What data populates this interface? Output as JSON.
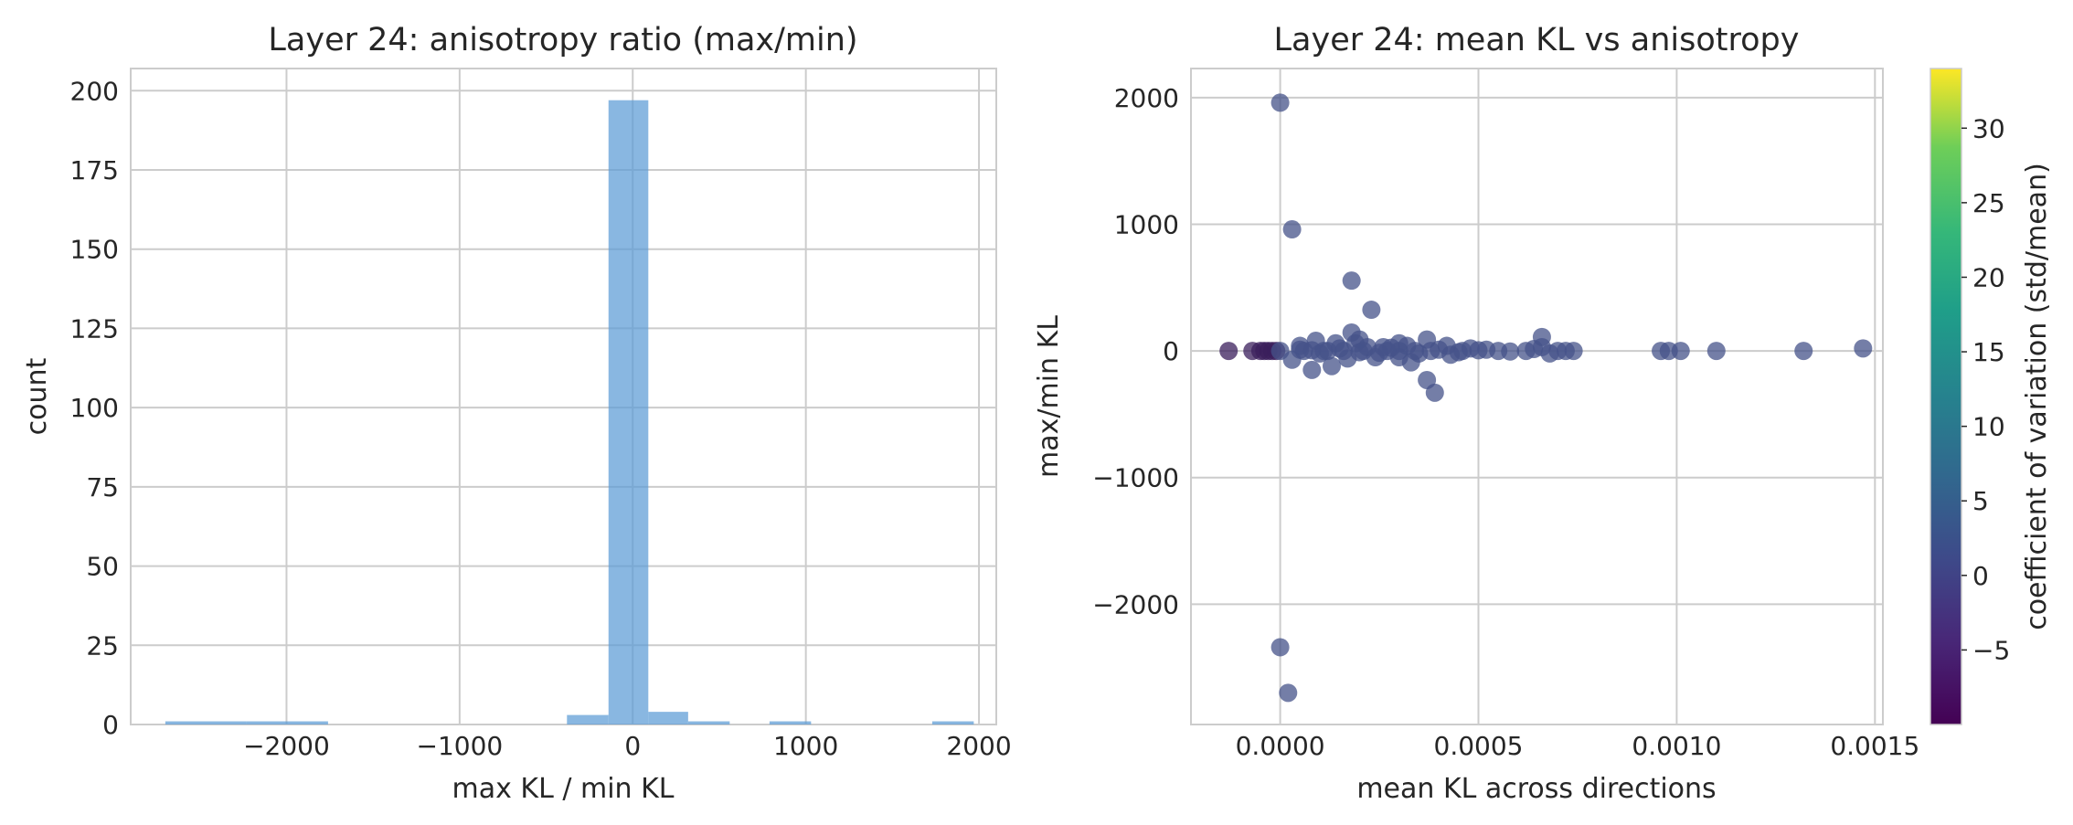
{
  "chart_data": [
    {
      "type": "bar",
      "subtype": "histogram",
      "title": "Layer 24: anisotropy ratio (max/min)",
      "xlabel": "max KL / min KL",
      "ylabel": "count",
      "xlim": [
        -2900,
        2100
      ],
      "ylim": [
        0,
        207
      ],
      "xticks": [
        -2000,
        -1000,
        0,
        1000,
        2000
      ],
      "xtick_labels": [
        "−2000",
        "−1000",
        "0",
        "1000",
        "2000"
      ],
      "yticks": [
        0,
        25,
        50,
        75,
        100,
        125,
        150,
        175,
        200
      ],
      "ytick_labels": [
        "0",
        "25",
        "50",
        "75",
        "100",
        "125",
        "150",
        "175",
        "200"
      ],
      "bar_color": "#5b9bd5",
      "grid": true,
      "bins": [
        {
          "x0": -2700,
          "x1": -2230,
          "count": 1
        },
        {
          "x0": -2230,
          "x1": -1760,
          "count": 1
        },
        {
          "x0": -380,
          "x1": -140,
          "count": 3
        },
        {
          "x0": -140,
          "x1": 90,
          "count": 197
        },
        {
          "x0": 90,
          "x1": 320,
          "count": 4
        },
        {
          "x0": 320,
          "x1": 560,
          "count": 1
        },
        {
          "x0": 790,
          "x1": 1030,
          "count": 1
        },
        {
          "x0": 1730,
          "x1": 1970,
          "count": 1
        }
      ]
    },
    {
      "type": "scatter",
      "title": "Layer 24: mean KL vs anisotropy",
      "xlabel": "mean KL across directions",
      "ylabel": "max/min KL",
      "xlim": [
        -0.000225,
        0.00152
      ],
      "ylim": [
        -2950,
        2230
      ],
      "xticks": [
        0,
        0.0005,
        0.001,
        0.0015
      ],
      "xtick_labels": [
        "0.0000",
        "0.0005",
        "0.0010",
        "0.0015"
      ],
      "yticks": [
        -2000,
        -1000,
        0,
        1000,
        2000
      ],
      "ytick_labels": [
        "−2000",
        "−1000",
        "0",
        "1000",
        "2000"
      ],
      "grid": true,
      "marker_color": "#46538a",
      "colorbar": {
        "label": "coefficient of variation (std/mean)",
        "range": [
          -10,
          34
        ],
        "ticks": [
          -5,
          0,
          5,
          10,
          15,
          20,
          25,
          30
        ],
        "tick_labels": [
          "−5",
          "0",
          "5",
          "10",
          "15",
          "20",
          "25",
          "30"
        ],
        "colormap": "viridis"
      },
      "points": [
        [
          -0.00013,
          0
        ],
        [
          -7e-05,
          0
        ],
        [
          -5e-05,
          0
        ],
        [
          -4e-05,
          0
        ],
        [
          -3e-05,
          0
        ],
        [
          -2e-05,
          0
        ],
        [
          -1e-05,
          0
        ],
        [
          0.0,
          0
        ],
        [
          0.0,
          1960
        ],
        [
          3e-05,
          960
        ],
        [
          0.0,
          -2340
        ],
        [
          2e-05,
          -2700
        ],
        [
          5e-05,
          10
        ],
        [
          8e-05,
          5
        ],
        [
          0.0001,
          -20
        ],
        [
          0.00012,
          0
        ],
        [
          0.00015,
          20
        ],
        [
          0.00018,
          555
        ],
        [
          0.00023,
          325
        ],
        [
          0.00018,
          145
        ],
        [
          0.00019,
          60
        ],
        [
          0.0002,
          -10
        ],
        [
          0.00022,
          30
        ],
        [
          0.00025,
          -15
        ],
        [
          0.00028,
          25
        ],
        [
          0.0003,
          0
        ],
        [
          0.00032,
          40
        ],
        [
          0.00035,
          -20
        ],
        [
          0.00037,
          90
        ],
        [
          0.00037,
          -230
        ],
        [
          0.00039,
          -330
        ],
        [
          0.0004,
          10
        ],
        [
          0.00042,
          40
        ],
        [
          0.00045,
          -10
        ],
        [
          0.00048,
          20
        ],
        [
          0.0005,
          5
        ],
        [
          0.00055,
          0
        ],
        [
          0.00058,
          -5
        ],
        [
          0.00062,
          0
        ],
        [
          0.00064,
          15
        ],
        [
          0.00066,
          110
        ],
        [
          0.00066,
          30
        ],
        [
          0.0007,
          0
        ],
        [
          0.00072,
          0
        ],
        [
          0.00074,
          0
        ],
        [
          0.00096,
          0
        ],
        [
          0.00098,
          0
        ],
        [
          0.00101,
          0
        ],
        [
          0.0011,
          0
        ],
        [
          0.00132,
          0
        ],
        [
          0.00147,
          20
        ],
        [
          3e-05,
          -70
        ],
        [
          8e-05,
          -150
        ],
        [
          0.00013,
          -120
        ],
        [
          0.00017,
          -60
        ],
        [
          0.00024,
          -50
        ],
        [
          0.0003,
          -50
        ],
        [
          0.00033,
          -90
        ],
        [
          5e-05,
          40
        ],
        [
          9e-05,
          80
        ],
        [
          0.00014,
          60
        ],
        [
          0.0002,
          90
        ],
        [
          0.00026,
          30
        ],
        [
          0.0003,
          60
        ],
        [
          0.00043,
          -30
        ],
        [
          0.00052,
          10
        ],
        [
          0.00068,
          -20
        ],
        [
          6e-05,
          0
        ],
        [
          0.00011,
          0
        ],
        [
          0.00016,
          0
        ],
        [
          0.00021,
          0
        ],
        [
          0.00027,
          0
        ],
        [
          0.00034,
          0
        ],
        [
          0.00038,
          0
        ],
        [
          0.00046,
          0
        ]
      ]
    }
  ]
}
